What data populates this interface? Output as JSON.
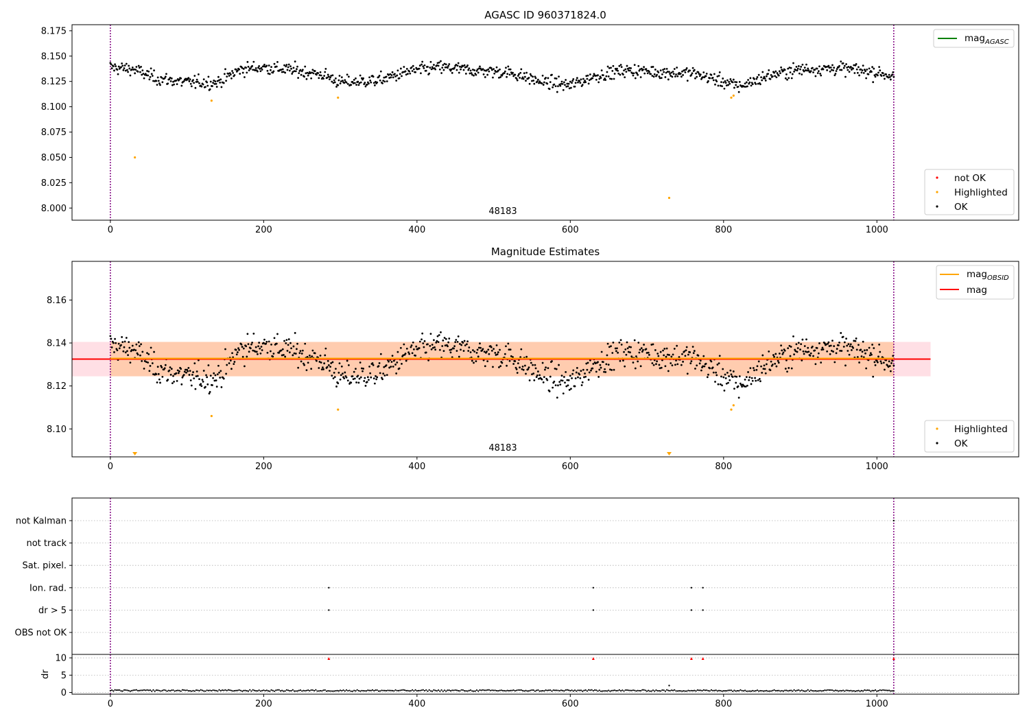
{
  "figure": {
    "xticks": [
      0,
      200,
      400,
      600,
      800,
      1000
    ],
    "xlim": [
      -50,
      1185
    ],
    "vlines": [
      0,
      1022
    ],
    "colors": {
      "ok": "#000000",
      "highlighted": "#ffa500",
      "not_ok": "#ff0000",
      "mag_agasc": "#008000",
      "mag_obsid": "#ffa500",
      "mag": "#ff0000",
      "vline": "#800080",
      "band_mag": "#ffc0cb",
      "band_obsid": "#ffbf8a",
      "grid": "#b0b0b0"
    }
  },
  "chart_data": [
    {
      "type": "scatter",
      "title": "AGASC ID 960371824.0",
      "xlabel": "",
      "ylabel": "",
      "xlim": [
        -50,
        1185
      ],
      "ylim": [
        7.988,
        8.181
      ],
      "yticks": [
        "8.000",
        "8.025",
        "8.050",
        "8.075",
        "8.100",
        "8.125",
        "8.150",
        "8.175"
      ],
      "annotation": {
        "text": "48183",
        "x": 511,
        "y": 7.998
      },
      "legend_upper": {
        "placement": "top-right",
        "entries": [
          {
            "label": "mag",
            "sub": "AGASC",
            "kind": "line",
            "color": "#008000"
          }
        ]
      },
      "legend_lower": {
        "placement": "bottom-right",
        "entries": [
          {
            "label": "not OK",
            "kind": "dot",
            "color": "#ff0000"
          },
          {
            "label": "Highlighted",
            "kind": "dot",
            "color": "#ffa500"
          },
          {
            "label": "OK",
            "kind": "dot",
            "color": "#000000"
          }
        ]
      },
      "series": [
        {
          "name": "OK",
          "generated": "magnitude samples, index 0-1022, mag ≈ 8.113–8.153"
        },
        {
          "name": "Highlighted",
          "x": [
            32,
            132,
            297,
            729,
            810,
            813
          ],
          "y": [
            8.05,
            8.106,
            8.109,
            8.01,
            8.109,
            8.111
          ]
        }
      ]
    },
    {
      "type": "scatter",
      "title": "Magnitude Estimates",
      "xlabel": "",
      "ylabel": "",
      "xlim": [
        -50,
        1185
      ],
      "ylim": [
        8.087,
        8.178
      ],
      "yticks": [
        "8.10",
        "8.12",
        "8.14",
        "8.16"
      ],
      "annotation": {
        "text": "48183",
        "x": 511,
        "y": 8.0895
      },
      "mag_line": 8.1325,
      "mag_band": [
        8.1245,
        8.1405
      ],
      "obsid_span": [
        0,
        1022
      ],
      "band_span": [
        -50,
        1070
      ],
      "legend_upper": {
        "placement": "top-right",
        "entries": [
          {
            "label": "mag",
            "sub": "OBSID",
            "kind": "line",
            "color": "#ffa500"
          },
          {
            "label": "mag",
            "sub": "",
            "kind": "line",
            "color": "#ff0000"
          }
        ]
      },
      "legend_lower": {
        "placement": "bottom-right",
        "entries": [
          {
            "label": "Highlighted",
            "kind": "dot",
            "color": "#ffa500"
          },
          {
            "label": "OK",
            "kind": "dot",
            "color": "#000000"
          }
        ]
      },
      "offscale_markers": [
        32,
        729
      ]
    },
    {
      "type": "scatter",
      "title": "",
      "xlim": [
        -50,
        1185
      ],
      "categories": [
        "not Kalman",
        "not track",
        "Sat. pixel.",
        "Ion. rad.",
        "dr > 5",
        "OBS not OK"
      ],
      "flags": {
        "Ion. rad.": [
          285,
          630,
          758,
          773
        ],
        "dr > 5": [
          285,
          630,
          758,
          773
        ],
        "not Kalman": [
          1022
        ]
      },
      "dr_ylim": [
        -0.5,
        11
      ],
      "dr_yticks": [
        "0",
        "5",
        "10"
      ],
      "dr_ylabel": "dr",
      "dr_high_points": [
        285,
        630,
        758,
        773,
        1022
      ],
      "dr_outlier": {
        "x": 729,
        "y": 2
      }
    }
  ]
}
